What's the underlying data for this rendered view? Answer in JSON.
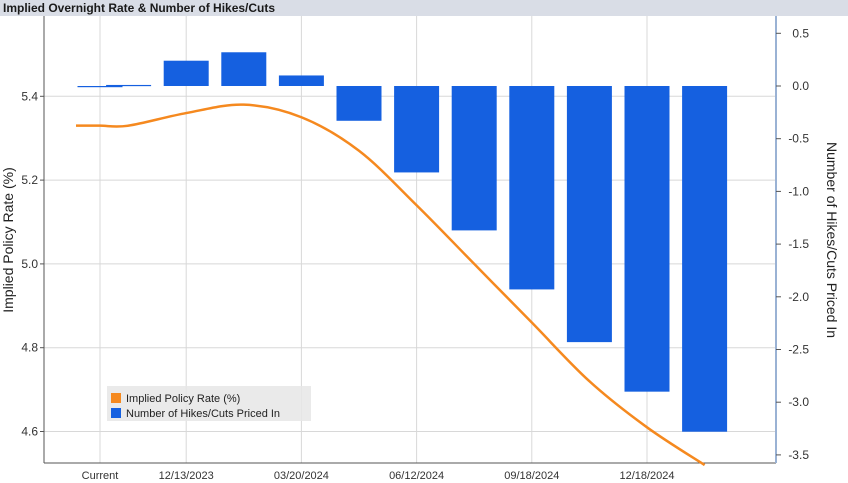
{
  "title": "Implied Overnight Rate & Number of Hikes/Cuts",
  "colors": {
    "bar": "#1560e0",
    "line": "#f5891f",
    "title_bar": "#d9dde6",
    "grid": "#d8d8d8",
    "right_axis": "#9ab2d4"
  },
  "chart_data": {
    "type": "bar",
    "title": "Implied Overnight Rate & Number of Hikes/Cuts",
    "categories": [
      "Current",
      "",
      "12/13/2023",
      "",
      "03/20/2024",
      "",
      "06/12/2024",
      "",
      "09/18/2024",
      "",
      "12/18/2024",
      ""
    ],
    "x_tick_labels": [
      "Current",
      "12/13/2023",
      "03/20/2024",
      "06/12/2024",
      "09/18/2024",
      "12/18/2024"
    ],
    "y_left": {
      "label": "Implied Policy Rate (%)",
      "lim": [
        4.5,
        5.5
      ],
      "ticks": [
        4.6,
        4.8,
        5.0,
        5.2,
        5.4
      ]
    },
    "y_right": {
      "label": "Number of Hikes/Cuts Priced In",
      "lim": [
        -3.5,
        0.6
      ],
      "ticks": [
        "0.5",
        "0.0",
        "-0.5",
        "-1.0",
        "-1.5",
        "-2.0",
        "-2.5",
        "-3.0",
        "-3.5"
      ]
    },
    "series": [
      {
        "name": "Implied Policy Rate (%)",
        "type": "line",
        "axis": "left",
        "values": [
          5.33,
          5.33,
          5.36,
          5.38,
          5.35,
          5.27,
          5.14,
          5.0,
          4.86,
          4.72,
          4.61,
          4.52
        ]
      },
      {
        "name": "Number of Hikes/Cuts Priced In",
        "type": "bar",
        "axis": "right",
        "values": [
          0.0,
          0.01,
          0.24,
          0.32,
          0.1,
          -0.33,
          -0.82,
          -1.37,
          -1.93,
          -2.43,
          -2.9,
          -3.28
        ]
      }
    ],
    "line_start_value": 5.33,
    "grid": true,
    "legend_position": "bottom-left"
  }
}
